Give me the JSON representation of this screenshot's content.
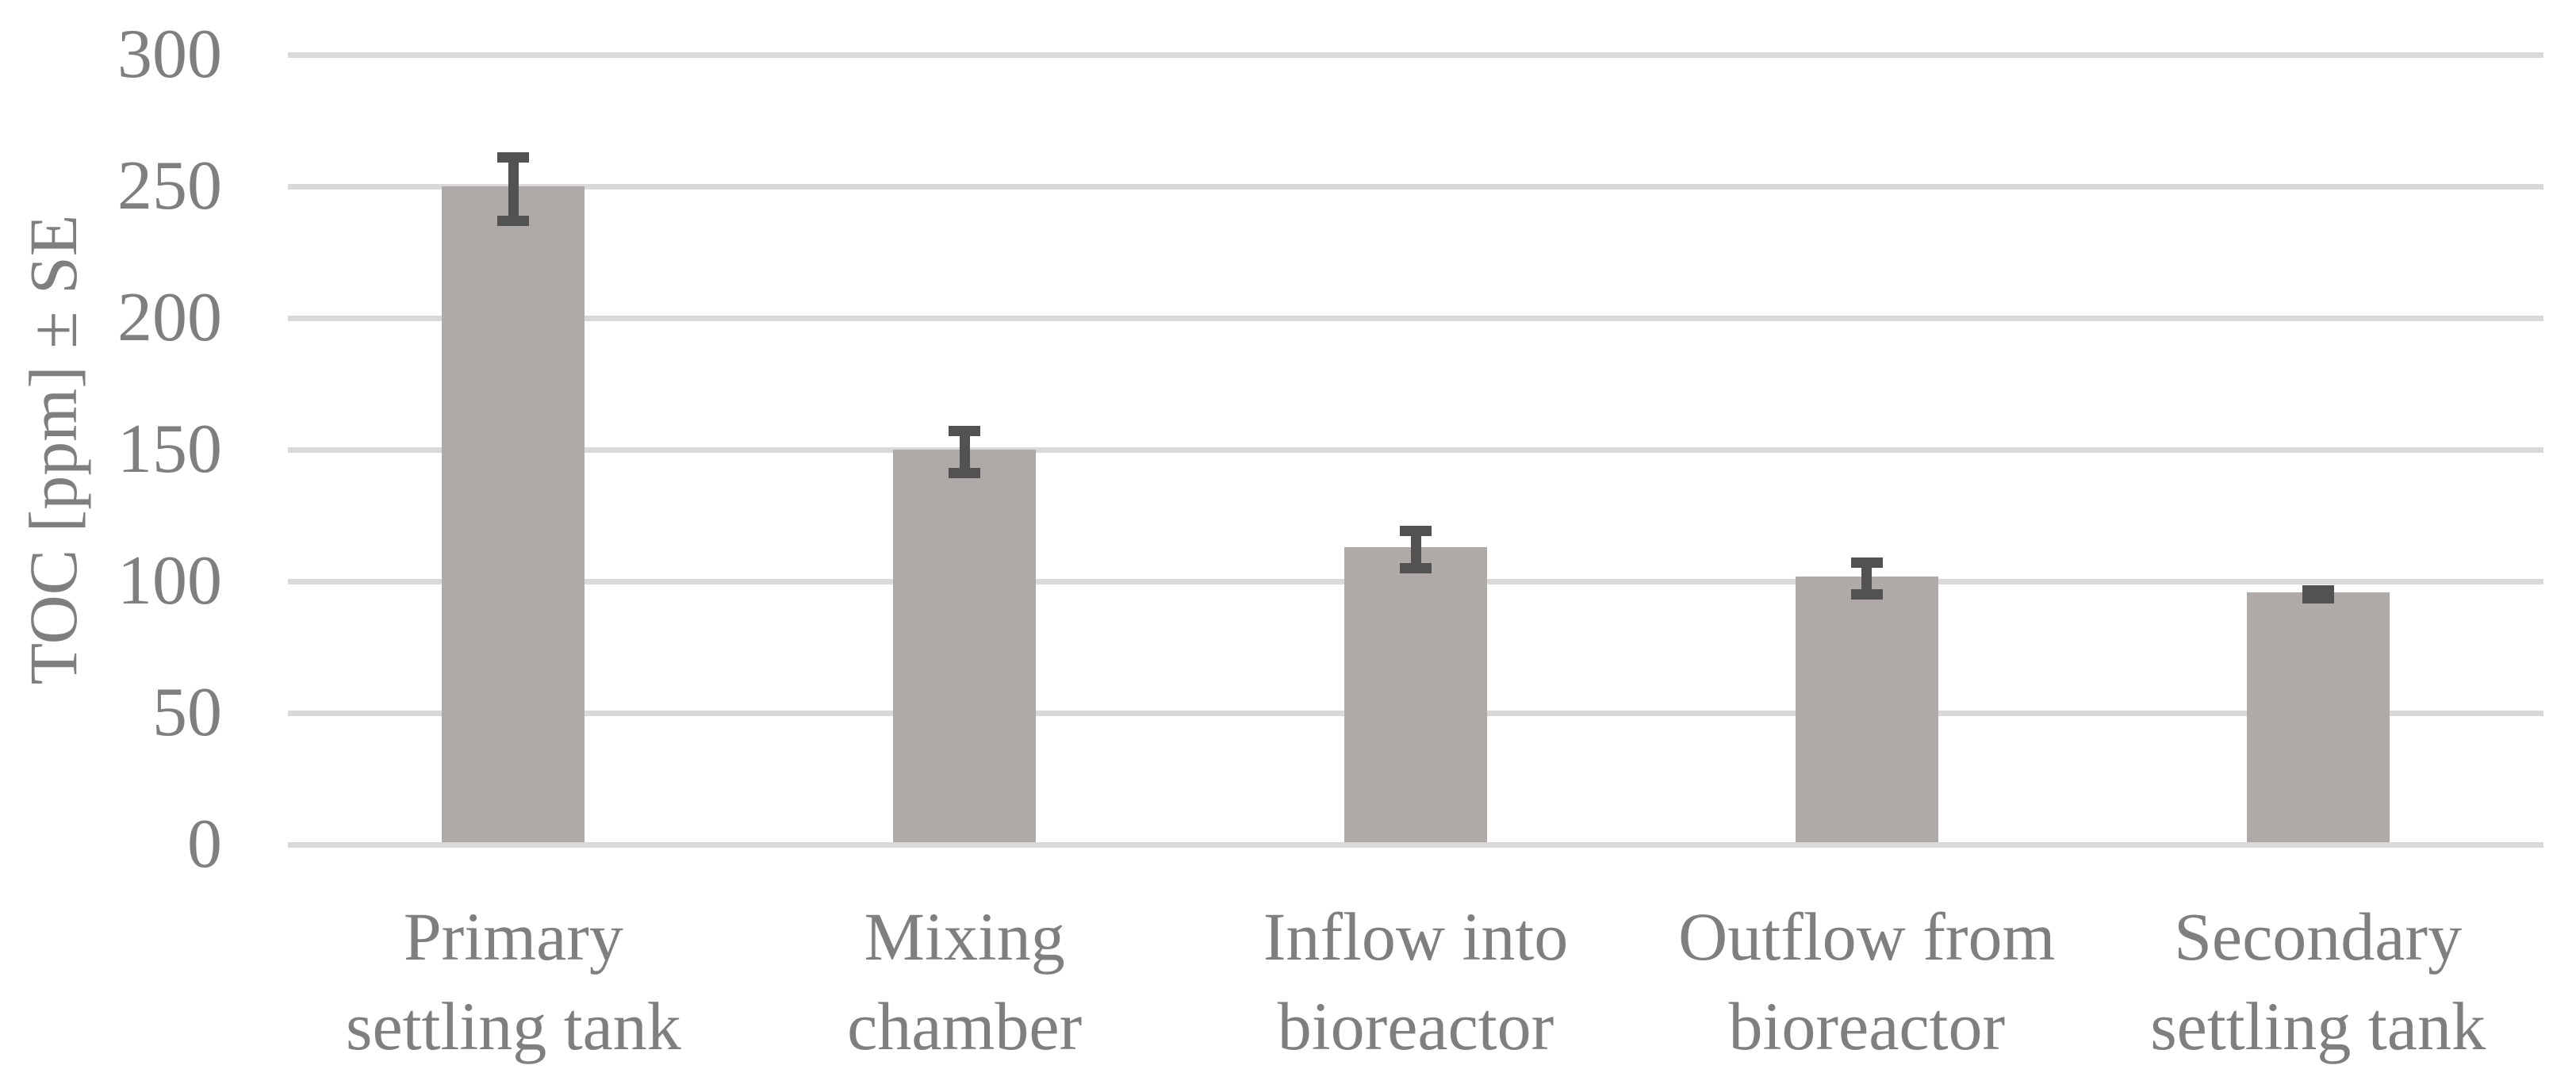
{
  "chart_data": {
    "type": "bar",
    "title": "",
    "xlabel": "",
    "ylabel": "TOC [ppm] ± SE",
    "categories": [
      "Primary settling tank",
      "Mixing chamber",
      "Inflow into bioreactor",
      "Outflow from bioreactor",
      "Secondary settling tank"
    ],
    "categories_two_line": [
      [
        "Primary",
        "settling tank"
      ],
      [
        "Mixing",
        "chamber"
      ],
      [
        "Inflow into",
        "bioreactor"
      ],
      [
        "Outflow from",
        "bioreactor"
      ],
      [
        "Secondary",
        "settling tank"
      ]
    ],
    "values": [
      249,
      149,
      112,
      101,
      95
    ],
    "error_se": [
      12,
      8,
      7,
      6,
      1.5
    ],
    "ylim": [
      0,
      300
    ],
    "yticks": [
      0,
      50,
      100,
      150,
      200,
      250,
      300
    ],
    "grid": true,
    "legend": false,
    "colors": {
      "bar": "#afaaa8",
      "error_bar": "#525252",
      "gridline": "#d9d9d9",
      "text": "#7f7f7f",
      "background": "#ffffff"
    }
  }
}
